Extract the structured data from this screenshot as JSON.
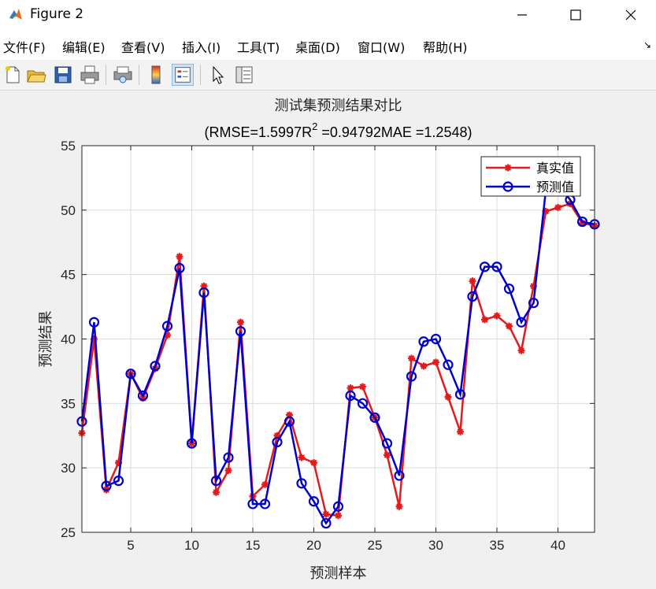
{
  "window": {
    "title": "Figure 2",
    "minimize_icon": "minimize-icon",
    "maximize_icon": "maximize-icon",
    "close_icon": "close-icon"
  },
  "menu": {
    "items": [
      "文件(F)",
      "编辑(E)",
      "查看(V)",
      "插入(I)",
      "工具(T)",
      "桌面(D)",
      "窗口(W)",
      "帮助(H)"
    ]
  },
  "toolbar": {
    "icons": [
      "new-figure-icon",
      "open-file-icon",
      "save-icon",
      "print-icon",
      "print-preview-icon",
      "colorbar-icon",
      "legend-icon",
      "pointer-icon",
      "property-inspector-icon"
    ]
  },
  "chart_data": {
    "type": "line",
    "title": "测试集预测结果对比",
    "subtitle_parts": [
      "(RMSE=1.5997R",
      "2",
      " =0.94792MAE =1.2548)"
    ],
    "xlabel": "预测样本",
    "ylabel": "预测结果",
    "xlim": [
      1,
      43
    ],
    "ylim": [
      25,
      55
    ],
    "xticks": [
      5,
      10,
      15,
      20,
      25,
      30,
      35,
      40
    ],
    "yticks": [
      25,
      30,
      35,
      40,
      45,
      50,
      55
    ],
    "grid": true,
    "legend_position": "top-right",
    "series": [
      {
        "name": "真实值",
        "color": "#e41a1c",
        "marker": "asterisk",
        "x": [
          1,
          2,
          3,
          4,
          5,
          6,
          7,
          8,
          9,
          10,
          11,
          12,
          13,
          14,
          15,
          16,
          17,
          18,
          19,
          20,
          21,
          22,
          23,
          24,
          25,
          26,
          27,
          28,
          29,
          30,
          31,
          32,
          33,
          34,
          35,
          36,
          37,
          38,
          39,
          40,
          41,
          42,
          43
        ],
        "values": [
          32.7,
          40.0,
          28.3,
          30.4,
          37.3,
          35.4,
          37.7,
          40.3,
          46.4,
          31.9,
          44.1,
          28.1,
          29.8,
          41.3,
          27.8,
          28.7,
          32.5,
          34.1,
          30.8,
          30.4,
          26.4,
          26.3,
          36.2,
          36.3,
          33.9,
          31.0,
          27.0,
          38.5,
          37.9,
          38.2,
          35.5,
          32.8,
          44.5,
          41.5,
          41.8,
          41.0,
          39.1,
          44.1,
          49.9,
          50.2,
          50.5,
          49.0,
          48.8
        ]
      },
      {
        "name": "预测值",
        "color": "#0000cc",
        "marker": "circle",
        "x": [
          1,
          2,
          3,
          4,
          5,
          6,
          7,
          8,
          9,
          10,
          11,
          12,
          13,
          14,
          15,
          16,
          17,
          18,
          19,
          20,
          21,
          22,
          23,
          24,
          25,
          26,
          27,
          28,
          29,
          30,
          31,
          32,
          33,
          34,
          35,
          36,
          37,
          38,
          39,
          40,
          41,
          42,
          43
        ],
        "values": [
          33.6,
          41.3,
          28.6,
          29.0,
          37.3,
          35.6,
          37.9,
          41.0,
          45.5,
          31.9,
          43.6,
          29.0,
          30.8,
          40.6,
          27.2,
          27.2,
          32.0,
          33.6,
          28.8,
          27.4,
          25.7,
          27.0,
          35.6,
          35.0,
          33.9,
          31.9,
          29.4,
          37.1,
          39.8,
          40.0,
          38.0,
          35.7,
          43.3,
          45.6,
          45.6,
          43.9,
          41.3,
          42.8,
          51.5,
          52.0,
          50.8,
          49.1,
          48.9
        ]
      }
    ]
  }
}
